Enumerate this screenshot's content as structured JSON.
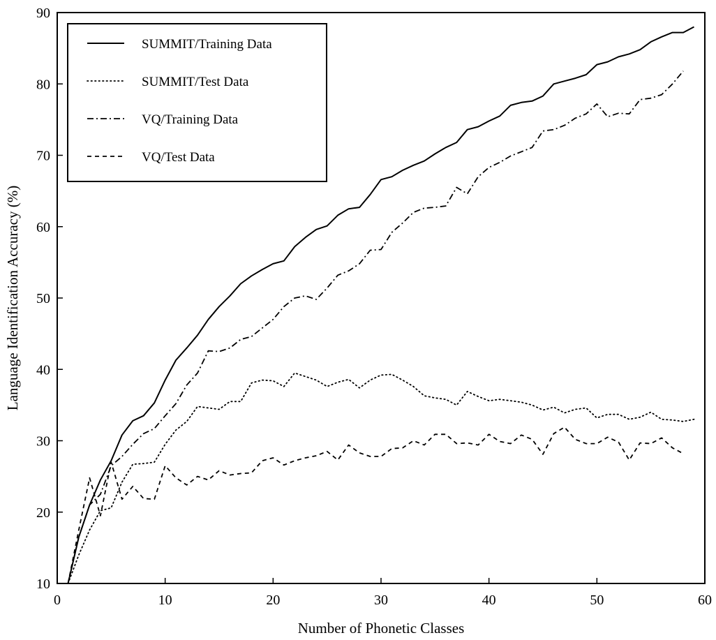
{
  "chart_data": {
    "type": "line",
    "xlabel": "Number of Phonetic Classes",
    "ylabel": "Language Identification Accuracy (%)",
    "xlim": [
      0,
      60
    ],
    "ylim": [
      10,
      90
    ],
    "xticks": [
      0,
      10,
      20,
      30,
      40,
      50,
      60
    ],
    "yticks": [
      10,
      20,
      30,
      40,
      50,
      60,
      70,
      80,
      90
    ],
    "grid": false,
    "legend_position": "top-left",
    "series": [
      {
        "name": "SUMMIT/Training Data",
        "line_style": "solid",
        "x": [
          1,
          2,
          3,
          4,
          5,
          6,
          7,
          8,
          9,
          10,
          11,
          12,
          13,
          14,
          15,
          16,
          17,
          18,
          19,
          20,
          21,
          22,
          23,
          24,
          25,
          26,
          27,
          28,
          29,
          30,
          31,
          32,
          33,
          34,
          35,
          36,
          37,
          38,
          39,
          40,
          41,
          42,
          43,
          44,
          45,
          46,
          47,
          48,
          49,
          50,
          51,
          52,
          53,
          54,
          55,
          56,
          57,
          58,
          59
        ],
        "y": [
          10,
          16.5,
          21,
          24.5,
          27.2,
          30.8,
          32.8,
          33.5,
          35.3,
          38.5,
          41.3,
          43,
          44.8,
          47,
          48.8,
          50.3,
          52,
          53.1,
          54,
          54.8,
          55.2,
          57.2,
          58.5,
          59.6,
          60.1,
          61.6,
          62.5,
          62.7,
          64.5,
          66.6,
          67,
          67.9,
          68.6,
          69.2,
          70.2,
          71.1,
          71.8,
          73.6,
          74,
          74.8,
          75.5,
          77,
          77.4,
          77.6,
          78.3,
          80,
          80.4,
          80.8,
          81.3,
          82.7,
          83.1,
          83.8,
          84.2,
          84.8,
          85.9,
          86.6,
          87.2,
          87.2,
          88
        ]
      },
      {
        "name": "SUMMIT/Test Data",
        "line_style": "dotted",
        "x": [
          1,
          2,
          3,
          4,
          5,
          6,
          7,
          8,
          9,
          10,
          11,
          12,
          13,
          14,
          15,
          16,
          17,
          18,
          19,
          20,
          21,
          22,
          23,
          24,
          25,
          26,
          27,
          28,
          29,
          30,
          31,
          32,
          33,
          34,
          35,
          36,
          37,
          38,
          39,
          40,
          41,
          42,
          43,
          44,
          45,
          46,
          47,
          48,
          49,
          50,
          51,
          52,
          53,
          54,
          55,
          56,
          57,
          58,
          59
        ],
        "y": [
          10,
          14,
          17.5,
          20.2,
          20.6,
          24.2,
          26.7,
          26.8,
          27,
          29.5,
          31.5,
          32.7,
          34.8,
          34.6,
          34.4,
          35.5,
          35.5,
          38.1,
          38.5,
          38.4,
          37.6,
          39.5,
          39,
          38.5,
          37.6,
          38.2,
          38.6,
          37.4,
          38.5,
          39.2,
          39.3,
          38.5,
          37.6,
          36.3,
          36,
          35.8,
          35,
          36.9,
          36.2,
          35.6,
          35.8,
          35.6,
          35.4,
          35,
          34.3,
          34.7,
          33.9,
          34.4,
          34.6,
          33.2,
          33.7,
          33.7,
          33,
          33.3,
          34,
          33,
          32.9,
          32.7,
          33
        ]
      },
      {
        "name": "VQ/Training Data",
        "line_style": "dash-dot",
        "x": [
          1,
          2,
          3,
          4,
          5,
          6,
          7,
          8,
          9,
          10,
          11,
          12,
          13,
          14,
          15,
          16,
          17,
          18,
          19,
          20,
          21,
          22,
          23,
          24,
          25,
          26,
          27,
          28,
          29,
          30,
          31,
          32,
          33,
          34,
          35,
          36,
          37,
          38,
          39,
          40,
          41,
          42,
          43,
          44,
          45,
          46,
          47,
          48,
          49,
          50,
          51,
          52,
          53,
          54,
          55,
          56,
          57,
          58
        ],
        "y": [
          10,
          16.5,
          21,
          22.5,
          26.5,
          27.8,
          29.5,
          31,
          31.7,
          33.5,
          35.2,
          37.8,
          39.5,
          42.6,
          42.5,
          43,
          44.2,
          44.6,
          45.8,
          47,
          48.8,
          50,
          50.3,
          49.8,
          51.4,
          53.2,
          53.8,
          54.8,
          56.7,
          56.8,
          59.2,
          60.5,
          62,
          62.6,
          62.7,
          62.9,
          65.5,
          64.6,
          67,
          68.3,
          69,
          69.9,
          70.5,
          71.1,
          73.4,
          73.6,
          74.2,
          75.2,
          75.8,
          77.2,
          75.4,
          75.9,
          75.8,
          77.8,
          78,
          78.5,
          80,
          81.8
        ]
      },
      {
        "name": "VQ/Test Data",
        "line_style": "dashed",
        "x": [
          1,
          2,
          3,
          4,
          5,
          6,
          7,
          8,
          9,
          10,
          11,
          12,
          13,
          14,
          15,
          16,
          17,
          18,
          19,
          20,
          21,
          22,
          23,
          24,
          25,
          26,
          27,
          28,
          29,
          30,
          31,
          32,
          33,
          34,
          35,
          36,
          37,
          38,
          39,
          40,
          41,
          42,
          43,
          44,
          45,
          46,
          47,
          48,
          49,
          50,
          51,
          52,
          53,
          54,
          55,
          56,
          57,
          58
        ],
        "y": [
          10,
          17.5,
          24.8,
          19.5,
          27,
          21.8,
          23.6,
          21.9,
          21.8,
          26.5,
          24.8,
          23.8,
          25,
          24.5,
          25.8,
          25.2,
          25.4,
          25.5,
          27.2,
          27.6,
          26.6,
          27.2,
          27.6,
          27.9,
          28.5,
          27.3,
          29.4,
          28.3,
          27.8,
          27.8,
          28.9,
          29,
          30,
          29.4,
          30.9,
          30.9,
          29.6,
          29.7,
          29.4,
          30.9,
          29.9,
          29.6,
          30.8,
          30.2,
          28.1,
          31,
          31.9,
          30.2,
          29.6,
          29.6,
          30.5,
          29.8,
          27.3,
          29.7,
          29.6,
          30.4,
          29,
          28.2
        ]
      }
    ]
  }
}
